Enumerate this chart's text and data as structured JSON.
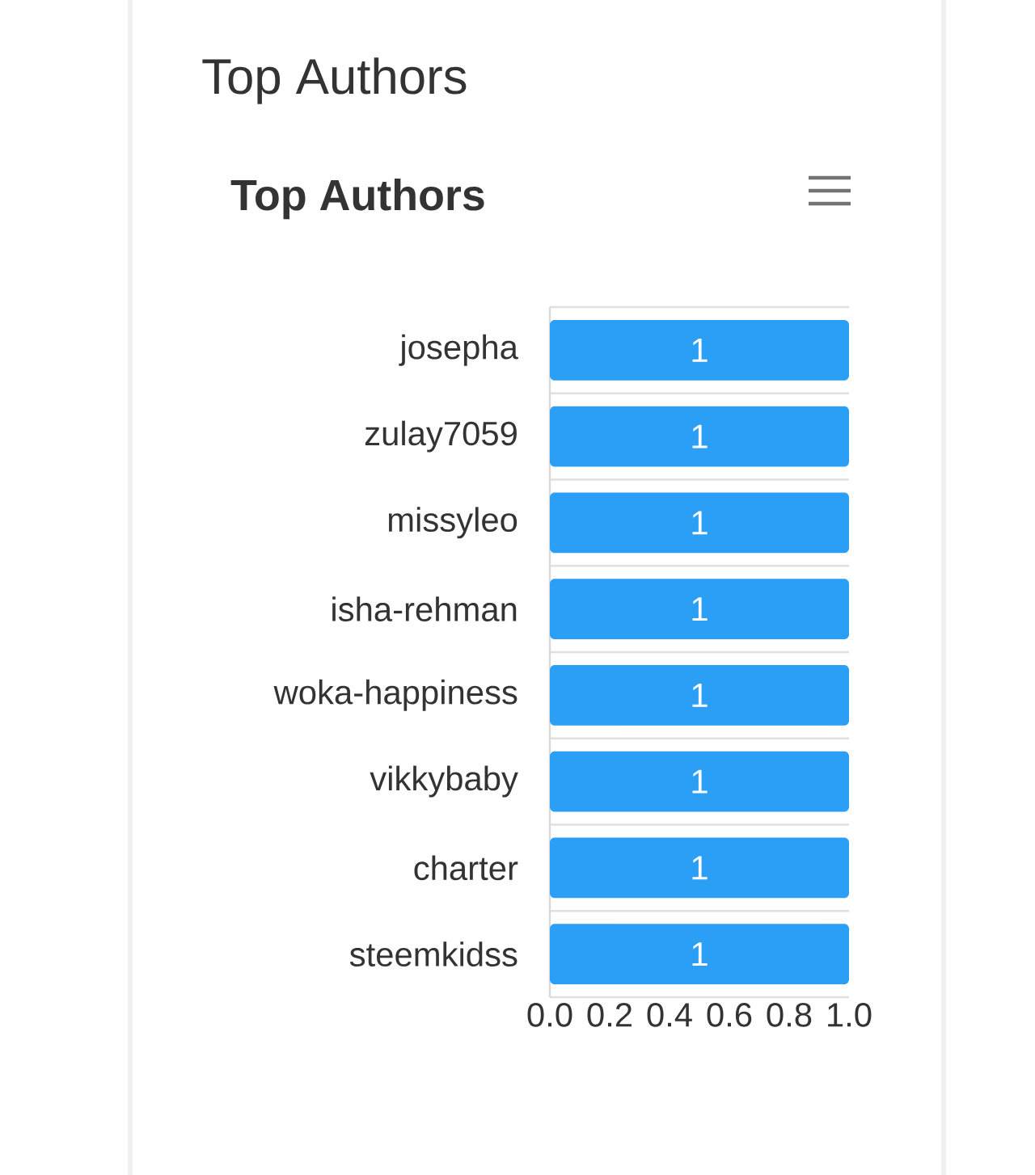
{
  "chart_data": {
    "type": "bar",
    "orientation": "horizontal",
    "title": "Top Authors",
    "subtitle": "Top Authors",
    "categories": [
      "josepha",
      "zulay7059",
      "missyleo",
      "isha-rehman",
      "woka-happiness",
      "vikkybaby",
      "charter",
      "steemkidss"
    ],
    "values": [
      1,
      1,
      1,
      1,
      1,
      1,
      1,
      1
    ],
    "color": "#2b9ef5",
    "data_labels": true,
    "grid": "y",
    "xlim": [
      0,
      1
    ],
    "xticks": [
      {
        "value": 0,
        "label": "0.0"
      },
      {
        "value": 0.2,
        "label": "0.2"
      },
      {
        "value": 0.4,
        "label": "0.4"
      },
      {
        "value": 0.6,
        "label": "0.6"
      },
      {
        "value": 0.8,
        "label": "0.8"
      },
      {
        "value": 1,
        "label": "1.0"
      }
    ]
  }
}
